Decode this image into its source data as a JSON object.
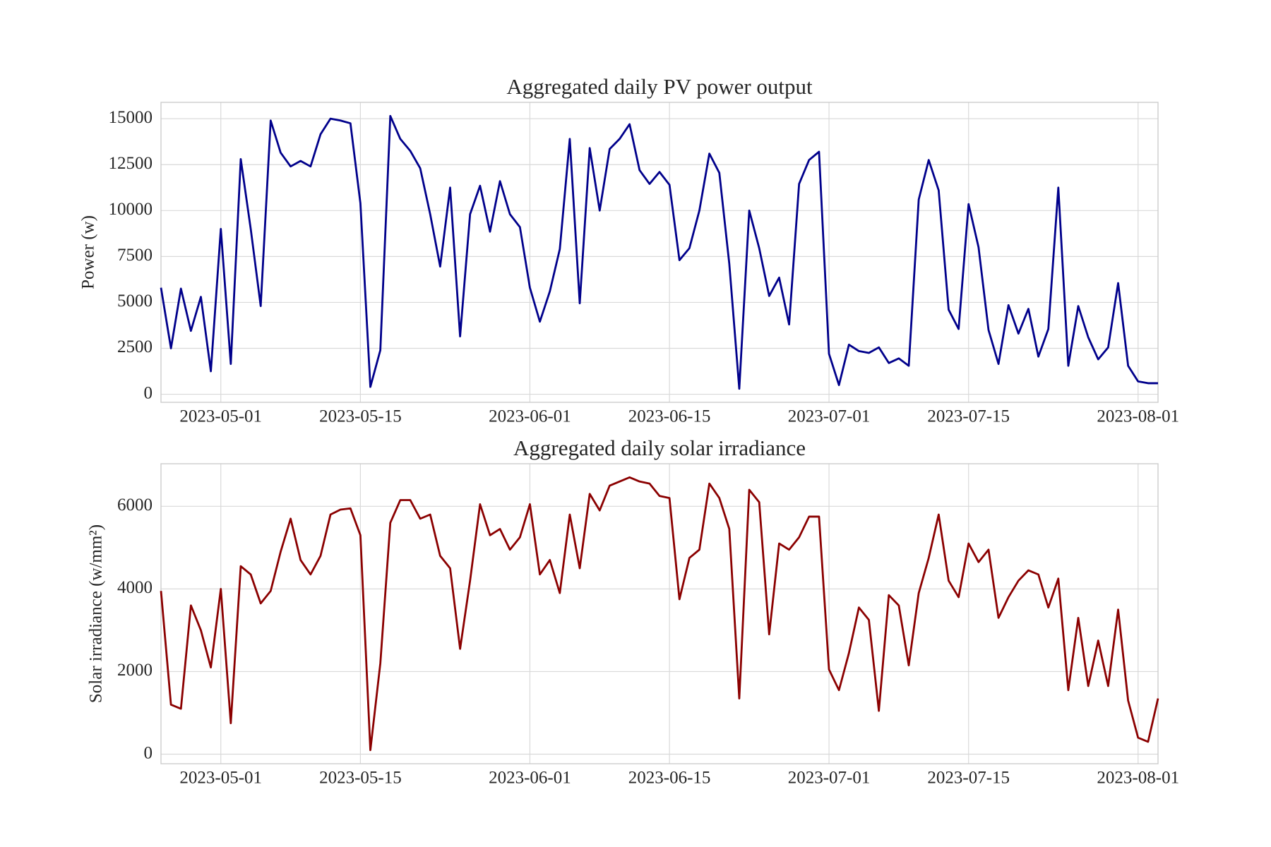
{
  "chart_data": [
    {
      "type": "line",
      "title": "Aggregated daily PV power output",
      "y_label": "Power (w)",
      "x": [
        "2023-04-25",
        "2023-04-26",
        "2023-04-27",
        "2023-04-28",
        "2023-04-29",
        "2023-04-30",
        "2023-05-01",
        "2023-05-02",
        "2023-05-03",
        "2023-05-04",
        "2023-05-05",
        "2023-05-06",
        "2023-05-07",
        "2023-05-08",
        "2023-05-09",
        "2023-05-10",
        "2023-05-11",
        "2023-05-12",
        "2023-05-13",
        "2023-05-14",
        "2023-05-15",
        "2023-05-16",
        "2023-05-17",
        "2023-05-18",
        "2023-05-19",
        "2023-05-20",
        "2023-05-21",
        "2023-05-22",
        "2023-05-23",
        "2023-05-24",
        "2023-05-25",
        "2023-05-26",
        "2023-05-27",
        "2023-05-28",
        "2023-05-29",
        "2023-05-30",
        "2023-05-31",
        "2023-06-01",
        "2023-06-02",
        "2023-06-03",
        "2023-06-04",
        "2023-06-05",
        "2023-06-06",
        "2023-06-07",
        "2023-06-08",
        "2023-06-09",
        "2023-06-10",
        "2023-06-11",
        "2023-06-12",
        "2023-06-13",
        "2023-06-14",
        "2023-06-15",
        "2023-06-16",
        "2023-06-17",
        "2023-06-18",
        "2023-06-19",
        "2023-06-20",
        "2023-06-21",
        "2023-06-22",
        "2023-06-23",
        "2023-06-24",
        "2023-06-25",
        "2023-06-26",
        "2023-06-27",
        "2023-06-28",
        "2023-06-29",
        "2023-06-30",
        "2023-07-01",
        "2023-07-02",
        "2023-07-03",
        "2023-07-04",
        "2023-07-05",
        "2023-07-06",
        "2023-07-07",
        "2023-07-08",
        "2023-07-09",
        "2023-07-10",
        "2023-07-11",
        "2023-07-12",
        "2023-07-13",
        "2023-07-14",
        "2023-07-15",
        "2023-07-16",
        "2023-07-17",
        "2023-07-18",
        "2023-07-19",
        "2023-07-20",
        "2023-07-21",
        "2023-07-22",
        "2023-07-23",
        "2023-07-24",
        "2023-07-25",
        "2023-07-26",
        "2023-07-27",
        "2023-07-28",
        "2023-07-29",
        "2023-07-30",
        "2023-07-31",
        "2023-08-01",
        "2023-08-02",
        "2023-08-03"
      ],
      "values": [
        5800,
        2500,
        5750,
        3450,
        5300,
        1250,
        9000,
        1650,
        12800,
        9000,
        4800,
        14900,
        13150,
        12400,
        12700,
        12400,
        14150,
        15000,
        14900,
        14750,
        10400,
        400,
        2400,
        15150,
        13900,
        13250,
        12300,
        9800,
        6950,
        11250,
        3150,
        9800,
        11350,
        8850,
        11600,
        9800,
        9100,
        5800,
        3950,
        5600,
        7900,
        13900,
        4950,
        13400,
        10000,
        13350,
        13900,
        14700,
        12200,
        11450,
        12100,
        11400,
        7300,
        7950,
        10000,
        13100,
        12050,
        7100,
        300,
        10000,
        7950,
        5350,
        6350,
        3800,
        11450,
        12750,
        13200,
        2200,
        500,
        2700,
        2350,
        2250,
        2550,
        1700,
        1950,
        1550,
        10600,
        12750,
        11100,
        4600,
        3550,
        10350,
        8000,
        3500,
        1650,
        4850,
        3300,
        4650,
        2050,
        3550,
        11250,
        1550,
        4800,
        3100,
        1900,
        2550,
        6050,
        1550,
        700,
        600,
        600
      ],
      "color": "#00008b",
      "xlim": [
        "2023-04-25",
        "2023-08-03"
      ],
      "xticks": [
        "2023-05-01",
        "2023-05-15",
        "2023-06-01",
        "2023-06-15",
        "2023-07-01",
        "2023-07-15",
        "2023-08-01"
      ],
      "ylim": [
        -440,
        15890
      ],
      "yticks": [
        0,
        2500,
        5000,
        7500,
        10000,
        12500,
        15000
      ],
      "grid": true
    },
    {
      "type": "line",
      "title": "Aggregated daily solar irradiance",
      "y_label": "Solar irradiance (w/mm²)",
      "x": [
        "2023-04-25",
        "2023-04-26",
        "2023-04-27",
        "2023-04-28",
        "2023-04-29",
        "2023-04-30",
        "2023-05-01",
        "2023-05-02",
        "2023-05-03",
        "2023-05-04",
        "2023-05-05",
        "2023-05-06",
        "2023-05-07",
        "2023-05-08",
        "2023-05-09",
        "2023-05-10",
        "2023-05-11",
        "2023-05-12",
        "2023-05-13",
        "2023-05-14",
        "2023-05-15",
        "2023-05-16",
        "2023-05-17",
        "2023-05-18",
        "2023-05-19",
        "2023-05-20",
        "2023-05-21",
        "2023-05-22",
        "2023-05-23",
        "2023-05-24",
        "2023-05-25",
        "2023-05-26",
        "2023-05-27",
        "2023-05-28",
        "2023-05-29",
        "2023-05-30",
        "2023-05-31",
        "2023-06-01",
        "2023-06-02",
        "2023-06-03",
        "2023-06-04",
        "2023-06-05",
        "2023-06-06",
        "2023-06-07",
        "2023-06-08",
        "2023-06-09",
        "2023-06-10",
        "2023-06-11",
        "2023-06-12",
        "2023-06-13",
        "2023-06-14",
        "2023-06-15",
        "2023-06-16",
        "2023-06-17",
        "2023-06-18",
        "2023-06-19",
        "2023-06-20",
        "2023-06-21",
        "2023-06-22",
        "2023-06-23",
        "2023-06-24",
        "2023-06-25",
        "2023-06-26",
        "2023-06-27",
        "2023-06-28",
        "2023-06-29",
        "2023-06-30",
        "2023-07-01",
        "2023-07-02",
        "2023-07-03",
        "2023-07-04",
        "2023-07-05",
        "2023-07-06",
        "2023-07-07",
        "2023-07-08",
        "2023-07-09",
        "2023-07-10",
        "2023-07-11",
        "2023-07-12",
        "2023-07-13",
        "2023-07-14",
        "2023-07-15",
        "2023-07-16",
        "2023-07-17",
        "2023-07-18",
        "2023-07-19",
        "2023-07-20",
        "2023-07-21",
        "2023-07-22",
        "2023-07-23",
        "2023-07-24",
        "2023-07-25",
        "2023-07-26",
        "2023-07-27",
        "2023-07-28",
        "2023-07-29",
        "2023-07-30",
        "2023-07-31",
        "2023-08-01",
        "2023-08-02",
        "2023-08-03"
      ],
      "values": [
        3950,
        1200,
        1100,
        3600,
        3000,
        2100,
        4000,
        750,
        4550,
        4350,
        3650,
        3950,
        4900,
        5700,
        4700,
        4350,
        4800,
        5800,
        5920,
        5950,
        5300,
        100,
        2200,
        5600,
        6150,
        6150,
        5700,
        5800,
        4800,
        4500,
        2550,
        4200,
        6050,
        5300,
        5450,
        4950,
        5250,
        6050,
        4350,
        4700,
        3900,
        5800,
        4500,
        6300,
        5900,
        6500,
        6600,
        6700,
        6600,
        6550,
        6250,
        6200,
        3750,
        4750,
        4950,
        6550,
        6200,
        5450,
        1350,
        6400,
        6100,
        2900,
        5100,
        4950,
        5250,
        5750,
        5750,
        2050,
        1550,
        2450,
        3550,
        3250,
        1050,
        3850,
        3600,
        2150,
        3900,
        4750,
        5800,
        4200,
        3800,
        5100,
        4650,
        4950,
        3300,
        3800,
        4200,
        4450,
        4350,
        3550,
        4250,
        1550,
        3300,
        1650,
        2750,
        1650,
        3500,
        1300,
        400,
        300,
        1350
      ],
      "color": "#8b0000",
      "xlim": [
        "2023-04-25",
        "2023-08-03"
      ],
      "xticks": [
        "2023-05-01",
        "2023-05-15",
        "2023-06-01",
        "2023-06-15",
        "2023-07-01",
        "2023-07-15",
        "2023-08-01"
      ],
      "ylim": [
        -230,
        7030
      ],
      "yticks": [
        0,
        2000,
        4000,
        6000
      ],
      "grid": true
    }
  ]
}
